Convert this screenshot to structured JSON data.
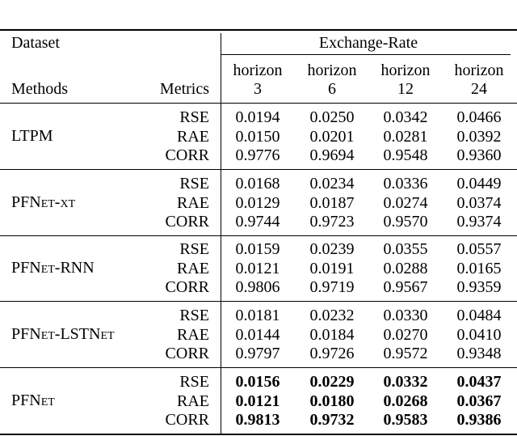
{
  "table": {
    "dataset_label": "Dataset",
    "dataset": "Exchange-Rate",
    "methods_label": "Methods",
    "metrics_label": "Metrics",
    "horizons": [
      {
        "word": "horizon",
        "value": "3"
      },
      {
        "word": "horizon",
        "value": "6"
      },
      {
        "word": "horizon",
        "value": "12"
      },
      {
        "word": "horizon",
        "value": "24"
      }
    ],
    "groups": [
      {
        "method": "LTPM",
        "rows": [
          {
            "metric": "RSE",
            "values": [
              "0.0194",
              "0.0250",
              "0.0342",
              "0.0466"
            ]
          },
          {
            "metric": "RAE",
            "values": [
              "0.0150",
              "0.0201",
              "0.0281",
              "0.0392"
            ]
          },
          {
            "metric": "CORR",
            "values": [
              "0.9776",
              "0.9694",
              "0.9548",
              "0.9360"
            ]
          }
        ]
      },
      {
        "method": "PFNet-xt",
        "rows": [
          {
            "metric": "RSE",
            "values": [
              "0.0168",
              "0.0234",
              "0.0336",
              "0.0449"
            ]
          },
          {
            "metric": "RAE",
            "values": [
              "0.0129",
              "0.0187",
              "0.0274",
              "0.0374"
            ]
          },
          {
            "metric": "CORR",
            "values": [
              "0.9744",
              "0.9723",
              "0.9570",
              "0.9374"
            ]
          }
        ]
      },
      {
        "method": "PFNet-RNN",
        "rows": [
          {
            "metric": "RSE",
            "values": [
              "0.0159",
              "0.0239",
              "0.0355",
              "0.0557"
            ]
          },
          {
            "metric": "RAE",
            "values": [
              "0.0121",
              "0.0191",
              "0.0288",
              "0.0165"
            ]
          },
          {
            "metric": "CORR",
            "values": [
              "0.9806",
              "0.9719",
              "0.9567",
              "0.9359"
            ]
          }
        ]
      },
      {
        "method": "PFNet-LSTNet",
        "rows": [
          {
            "metric": "RSE",
            "values": [
              "0.0181",
              "0.0232",
              "0.0330",
              "0.0484"
            ]
          },
          {
            "metric": "RAE",
            "values": [
              "0.0144",
              "0.0184",
              "0.0270",
              "0.0410"
            ]
          },
          {
            "metric": "CORR",
            "values": [
              "0.9797",
              "0.9726",
              "0.9572",
              "0.9348"
            ]
          }
        ]
      },
      {
        "method": "PFNet",
        "bold": true,
        "rows": [
          {
            "metric": "RSE",
            "values": [
              "0.0156",
              "0.0229",
              "0.0332",
              "0.0437"
            ]
          },
          {
            "metric": "RAE",
            "values": [
              "0.0121",
              "0.0180",
              "0.0268",
              "0.0367"
            ]
          },
          {
            "metric": "CORR",
            "values": [
              "0.9813",
              "0.9732",
              "0.9583",
              "0.9386"
            ]
          }
        ]
      }
    ]
  }
}
